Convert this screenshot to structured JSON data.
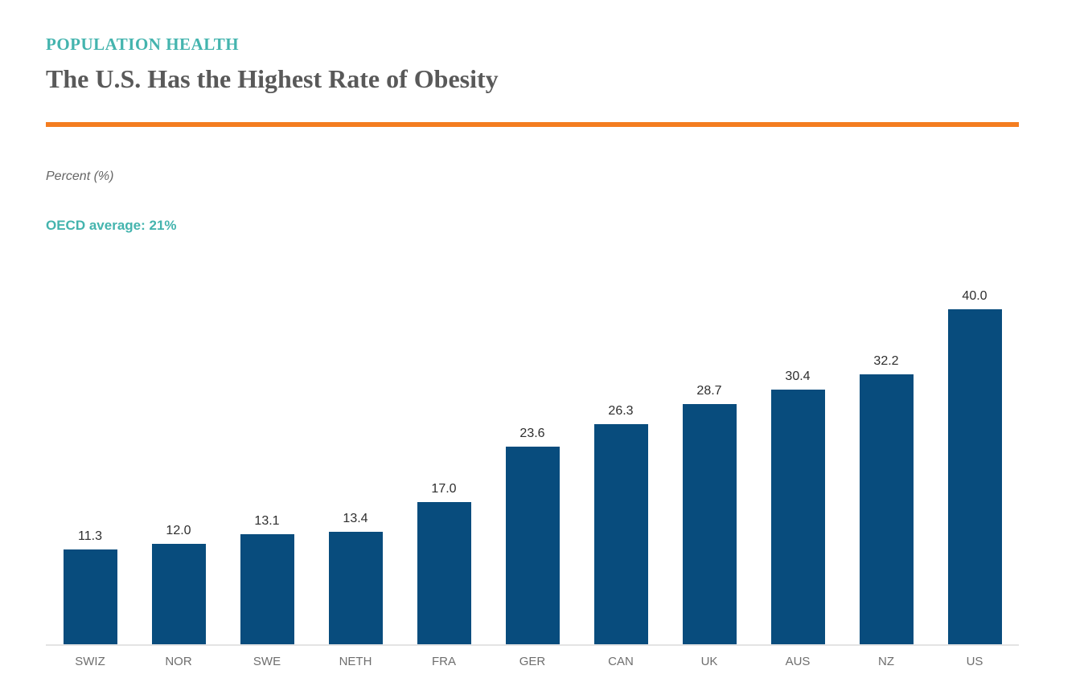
{
  "header": {
    "eyebrow": "POPULATION HEALTH",
    "title": "The U.S. Has the Highest Rate of Obesity"
  },
  "labels": {
    "unit": "Percent (%)",
    "annotation": "OECD average: 21%"
  },
  "colors": {
    "bar": "#084C7D",
    "teal_accent": "#44B4AE",
    "orange_divider": "#F47D20",
    "title_text": "#595959",
    "value_label_text": "#2E2E2E",
    "axis_label_text": "#6E6E6E",
    "axis_line": "#E4E4E4"
  },
  "chart_data": {
    "type": "bar",
    "categories": [
      "SWIZ",
      "NOR",
      "SWE",
      "NETH",
      "FRA",
      "GER",
      "CAN",
      "UK",
      "AUS",
      "NZ",
      "US"
    ],
    "values": [
      11.3,
      12.0,
      13.1,
      13.4,
      17.0,
      23.6,
      26.3,
      28.7,
      30.4,
      32.2,
      40.0
    ],
    "title": "The U.S. Has the Highest Rate of Obesity",
    "subtitle": "POPULATION HEALTH",
    "xlabel": "",
    "ylabel": "Percent (%)",
    "ylim": [
      0,
      40
    ],
    "grid": false,
    "legend_position": "none",
    "value_labels": true,
    "annotation": "OECD average: 21%",
    "value_label_decimals": 1
  }
}
